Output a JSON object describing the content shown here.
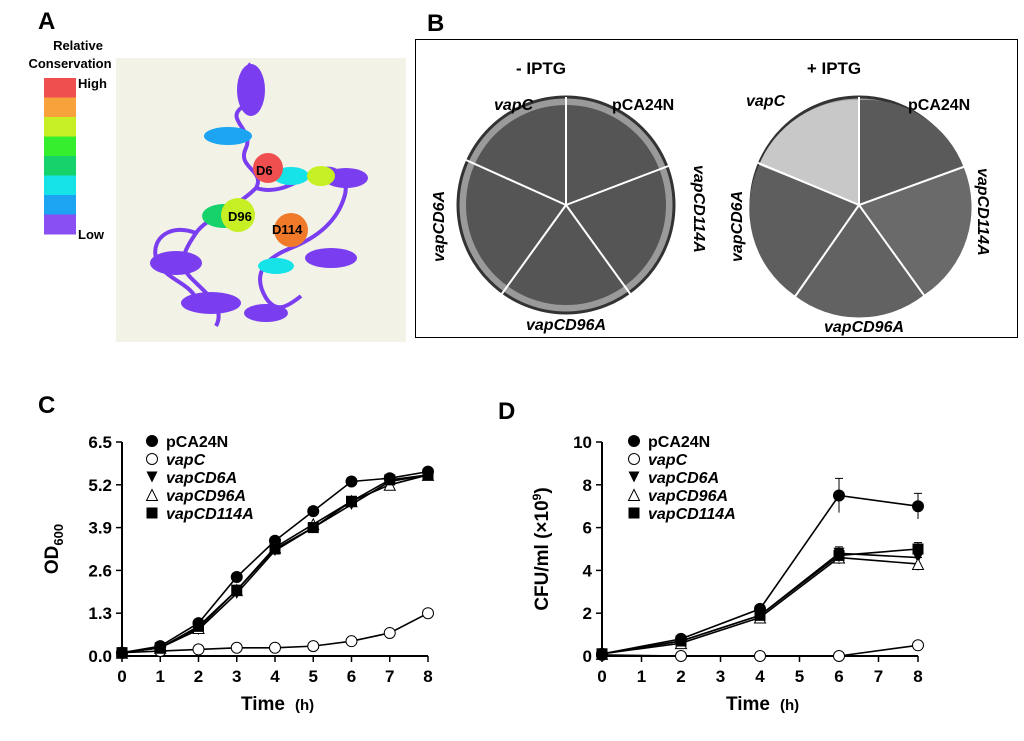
{
  "panels": {
    "a": "A",
    "b": "B",
    "c": "C",
    "d": "D"
  },
  "panel_a": {
    "legend_title_line1": "Relative",
    "legend_title_line2": "Conservation",
    "high_label": "High",
    "low_label": "Low",
    "scale_colors": [
      "#ef4f4f",
      "#f8a23c",
      "#c6f023",
      "#35ef2f",
      "#15d26a",
      "#16e3e8",
      "#1ca4f2",
      "#8a4ff2"
    ],
    "residue_labels": [
      "D6",
      "D96",
      "D114"
    ]
  },
  "panel_b": {
    "left_plate": {
      "title": "- IPTG",
      "labels": [
        "vapC",
        "pCA24N",
        "vapCD114A",
        "vapCD96A",
        "vapCD6A"
      ]
    },
    "right_plate": {
      "title": "+ IPTG",
      "labels": [
        "vapC",
        "pCA24N",
        "vapCD114A",
        "vapCD96A",
        "vapCD6A"
      ]
    }
  },
  "chart_data": [
    {
      "type": "line",
      "panel": "C",
      "ylabel_main": "OD",
      "ylabel_sub": "600",
      "xlabel": "Time",
      "xlabel_unit": "(h)",
      "x": [
        0,
        1,
        2,
        3,
        4,
        5,
        6,
        7,
        8
      ],
      "xticks": [
        "0",
        "1",
        "2",
        "3",
        "4",
        "5",
        "6",
        "7",
        "8"
      ],
      "yticks": [
        "0.0",
        "1.3",
        "2.6",
        "3.9",
        "5.2",
        "6.5"
      ],
      "ylim": [
        0,
        6.5
      ],
      "xlim": [
        0,
        8
      ],
      "series": [
        {
          "name": "pCA24N",
          "marker": "circle-filled",
          "values": [
            0.1,
            0.3,
            1.0,
            2.4,
            3.5,
            4.4,
            5.3,
            5.4,
            5.6
          ]
        },
        {
          "name": "vapC",
          "marker": "circle-open",
          "values": [
            0.1,
            0.15,
            0.2,
            0.25,
            0.25,
            0.3,
            0.45,
            0.7,
            1.3
          ]
        },
        {
          "name": "vapCD6A",
          "marker": "triangle-down-filled",
          "values": [
            0.1,
            0.25,
            0.8,
            1.9,
            3.2,
            3.9,
            4.6,
            5.3,
            5.5
          ]
        },
        {
          "name": "vapCD96A",
          "marker": "triangle-up-open",
          "values": [
            0.1,
            0.25,
            0.85,
            2.0,
            3.3,
            4.0,
            4.7,
            5.2,
            5.5
          ]
        },
        {
          "name": "vapCD114A",
          "marker": "square-filled",
          "values": [
            0.1,
            0.25,
            0.9,
            2.0,
            3.25,
            3.9,
            4.7,
            5.35,
            5.5
          ]
        }
      ]
    },
    {
      "type": "line",
      "panel": "D",
      "ylabel_main": "CFU/ml (×10",
      "ylabel_sup": "9",
      "ylabel_end": ")",
      "xlabel": "Time",
      "xlabel_unit": "(h)",
      "x": [
        0,
        2,
        4,
        6,
        8
      ],
      "xticks": [
        "0",
        "1",
        "2",
        "3",
        "4",
        "5",
        "6",
        "7",
        "8"
      ],
      "yticks": [
        "0",
        "2",
        "4",
        "6",
        "8",
        "10"
      ],
      "ylim": [
        0,
        10
      ],
      "xlim": [
        0,
        8
      ],
      "series": [
        {
          "name": "pCA24N",
          "marker": "circle-filled",
          "values": [
            0.1,
            0.8,
            2.2,
            7.5,
            7.0
          ],
          "errors": [
            0,
            0.1,
            0.15,
            0.8,
            0.6
          ]
        },
        {
          "name": "vapC",
          "marker": "circle-open",
          "values": [
            0.05,
            0.0,
            0.0,
            0.0,
            0.5
          ],
          "errors": [
            0,
            0,
            0,
            0,
            0
          ]
        },
        {
          "name": "vapCD6A",
          "marker": "triangle-down-filled",
          "values": [
            0.1,
            0.7,
            1.9,
            4.8,
            4.6
          ],
          "errors": [
            0,
            0.1,
            0.15,
            0.3,
            0.3
          ]
        },
        {
          "name": "vapCD96A",
          "marker": "triangle-up-open",
          "values": [
            0.1,
            0.6,
            1.8,
            4.6,
            4.3
          ],
          "errors": [
            0,
            0.1,
            0.15,
            0.3,
            0.3
          ]
        },
        {
          "name": "vapCD114A",
          "marker": "square-filled",
          "values": [
            0.1,
            0.7,
            1.9,
            4.7,
            5.0
          ],
          "errors": [
            0,
            0.1,
            0.15,
            0.3,
            0.3
          ]
        }
      ]
    }
  ]
}
